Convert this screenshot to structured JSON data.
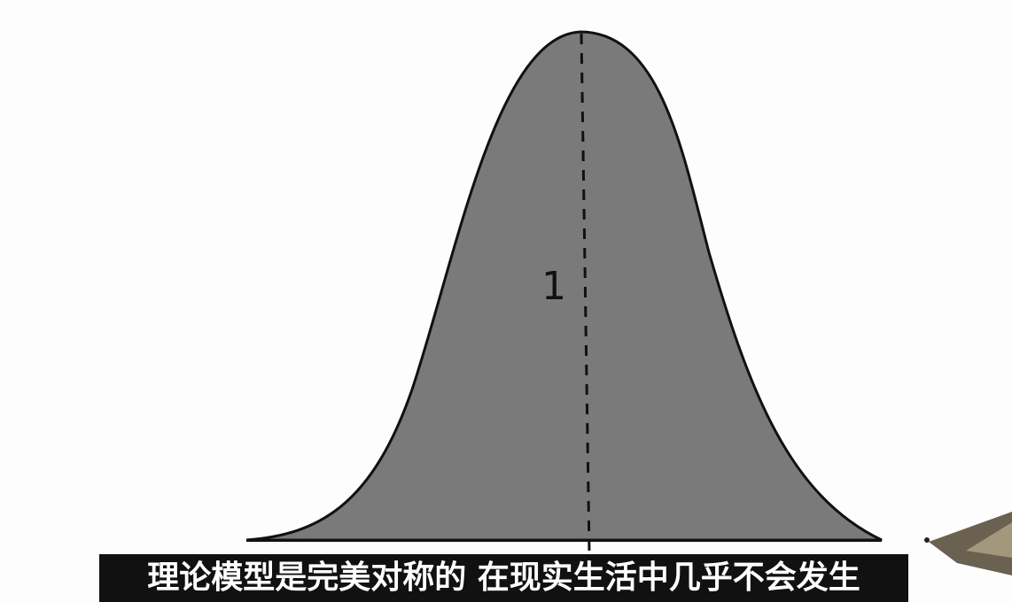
{
  "drawing": {
    "peak_label": "1"
  },
  "subtitle": "理论模型是完美对称的 在现实生活中几乎不会发生"
}
